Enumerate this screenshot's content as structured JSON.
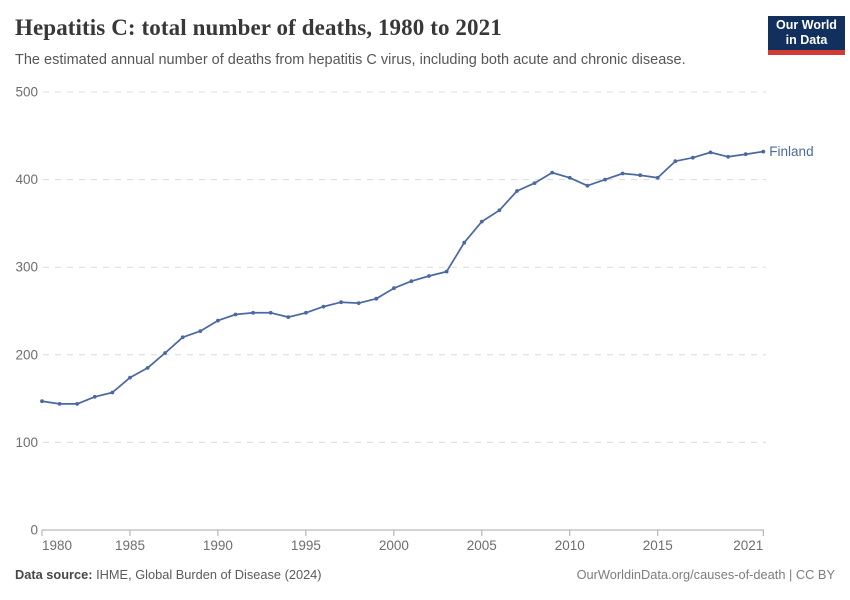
{
  "header": {
    "title": "Hepatitis C: total number of deaths, 1980 to 2021",
    "subtitle": "The estimated annual number of deaths from hepatitis C virus, including both acute and chronic disease."
  },
  "logo": {
    "line1": "Our World",
    "line2": "in Data",
    "bg_color": "#12305e",
    "bar_color": "#d23a34"
  },
  "footer": {
    "source_label": "Data source:",
    "source_text": " IHME, Global Burden of Disease (2024)",
    "right_text": "OurWorldinData.org/causes-of-death | CC BY"
  },
  "colors": {
    "line": "#4a69a2",
    "grid": "#dcdcdc",
    "axis": "#a9a9a9",
    "tick_text": "#6e6e6e"
  },
  "chart_data": {
    "type": "line",
    "title": "Hepatitis C: total number of deaths, 1980 to 2021",
    "xlabel": "",
    "ylabel": "",
    "xlim": [
      1980,
      2021
    ],
    "ylim": [
      0,
      500
    ],
    "x_ticks": [
      1980,
      1985,
      1990,
      1995,
      2000,
      2005,
      2010,
      2015,
      2021
    ],
    "y_ticks": [
      0,
      100,
      200,
      300,
      400,
      500
    ],
    "grid": "dashed-horizontal",
    "legend_position": "end-of-line-label",
    "series": [
      {
        "name": "Finland",
        "color": "#4a69a2",
        "x": [
          1980,
          1981,
          1982,
          1983,
          1984,
          1985,
          1986,
          1987,
          1988,
          1989,
          1990,
          1991,
          1992,
          1993,
          1994,
          1995,
          1996,
          1997,
          1998,
          1999,
          2000,
          2001,
          2002,
          2003,
          2004,
          2005,
          2006,
          2007,
          2008,
          2009,
          2010,
          2011,
          2012,
          2013,
          2014,
          2015,
          2016,
          2017,
          2018,
          2019,
          2020,
          2021
        ],
        "values": [
          147,
          144,
          144,
          152,
          157,
          174,
          185,
          202,
          220,
          227,
          239,
          246,
          248,
          248,
          243,
          248,
          255,
          260,
          259,
          264,
          276,
          284,
          290,
          295,
          328,
          352,
          365,
          387,
          396,
          408,
          402,
          393,
          400,
          407,
          405,
          402,
          421,
          425,
          431,
          426,
          429,
          432
        ]
      }
    ]
  }
}
